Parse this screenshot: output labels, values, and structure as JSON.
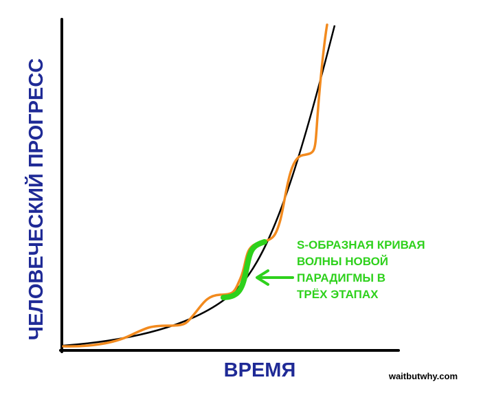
{
  "axes": {
    "y_label": "ЧЕЛОВЕЧЕСКИЙ ПРОГРЕСС",
    "x_label": "ВРЕМЯ"
  },
  "annotation": {
    "lines": [
      "S-ОБРАЗНАЯ КРИВАЯ",
      "ВОЛНЫ НОВОЙ",
      "ПАРАДИГМЫ В",
      "ТРЁХ ЭТАПАХ"
    ]
  },
  "credit": "waitbutwhy.com"
}
